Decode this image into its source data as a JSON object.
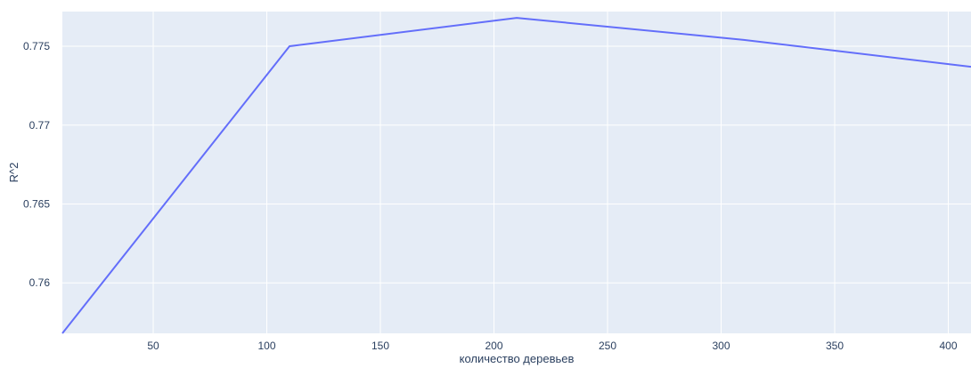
{
  "chart_data": {
    "type": "line",
    "title": "",
    "xlabel": "количество деревьев",
    "ylabel": "R^2",
    "xlim": [
      10,
      410
    ],
    "ylim": [
      0.7568,
      0.7772
    ],
    "x_ticks": [
      50,
      100,
      150,
      200,
      250,
      300,
      350,
      400
    ],
    "x_tick_labels": [
      "50",
      "100",
      "150",
      "200",
      "250",
      "300",
      "350",
      "400"
    ],
    "y_ticks": [
      0.76,
      0.765,
      0.77,
      0.775
    ],
    "y_tick_labels": [
      "0.76",
      "0.765",
      "0.77",
      "0.775"
    ],
    "grid": true,
    "series": [
      {
        "x": [
          10,
          110,
          210,
          310,
          410
        ],
        "values": [
          0.7568,
          0.775,
          0.7768,
          0.7754,
          0.7737
        ]
      }
    ],
    "colors": {
      "plot_background": "#e5ecf6",
      "grid": "#ffffff",
      "line": "#636efa",
      "text": "#2a3f5f"
    }
  }
}
